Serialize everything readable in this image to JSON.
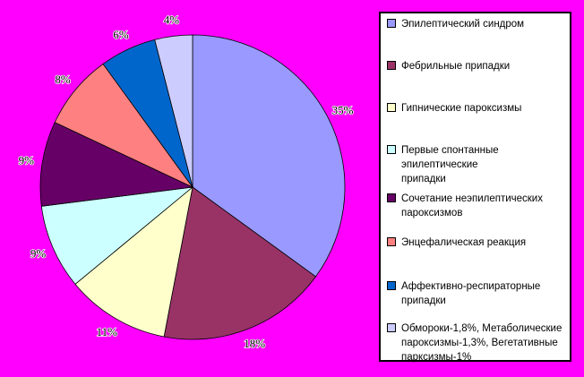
{
  "background_color": "#FF00FF",
  "legend_box": {
    "background": "#FFFFFF",
    "border_color": "#000000",
    "position": "right"
  },
  "chart_data": {
    "type": "pie",
    "title": "",
    "start_angle_deg": 0,
    "direction": "clockwise",
    "total": 100,
    "labels_position": "outside-end",
    "slices": [
      {
        "legend_label": "Эпилептический синдром",
        "legend_lines": [
          "Эпилептический синдром"
        ],
        "value": 35,
        "percent_label": "35%",
        "color": "#9999FF"
      },
      {
        "legend_label": "Фебрильные припадки",
        "legend_lines": [
          "Фебрильные припадки"
        ],
        "value": 18,
        "percent_label": "18%",
        "color": "#993366"
      },
      {
        "legend_label": "Гипнические пароксизмы",
        "legend_lines": [
          "Гипнические пароксизмы"
        ],
        "value": 11,
        "percent_label": "11%",
        "color": "#FFFFCC"
      },
      {
        "legend_label": "Первые спонтанные эпилептические припадки",
        "legend_lines": [
          "Первые спонтанные эпилептические",
          "припадки"
        ],
        "value": 9,
        "percent_label": "9%",
        "color": "#CCFFFF"
      },
      {
        "legend_label": "Сочетание неэпилептических пароксизмов",
        "legend_lines": [
          "Сочетание неэпилептических",
          "пароксизмов"
        ],
        "value": 9,
        "percent_label": "9%",
        "color": "#660066"
      },
      {
        "legend_label": "Энцефалическая реакция",
        "legend_lines": [
          "Энцефалическая реакция"
        ],
        "value": 8,
        "percent_label": "8%",
        "color": "#FF8080"
      },
      {
        "legend_label": "Аффективно-респираторные припадки",
        "legend_lines": [
          "Аффективно-респираторные",
          "припадки"
        ],
        "value": 6,
        "percent_label": "6%",
        "color": "#0066CC"
      },
      {
        "legend_label": "Обмороки-1,8%, Метаболические пароксизмы-1,3%, Вегетативные парксизмы-1%",
        "legend_lines": [
          "Обмороки-1,8%, Метаболические",
          "пароксизмы-1,3%, Вегетативные",
          "парксизмы-1%"
        ],
        "value": 4,
        "percent_label": "4%",
        "color": "#CCCCFF"
      }
    ]
  }
}
